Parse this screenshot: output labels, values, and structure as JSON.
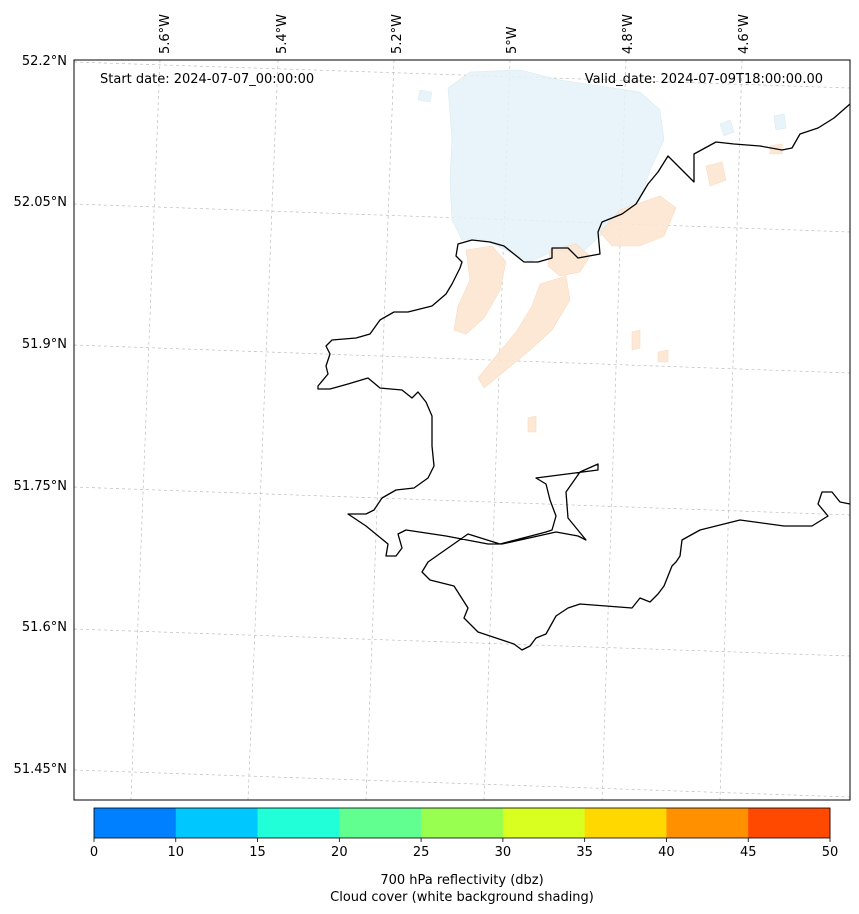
{
  "map": {
    "start_date": "Start date: 2024-07-07_00:00:00",
    "valid_date": "Valid_date: 2024-07-09T18:00:00.00",
    "lon_labels": [
      "5.6°W",
      "5.4°W",
      "5.2°W",
      "5°W",
      "4.8°W",
      "4.6°W"
    ],
    "lat_labels": [
      "52.2°N",
      "52.05°N",
      "51.9°N",
      "51.75°N",
      "51.6°N",
      "51.45°N"
    ]
  },
  "colorbar": {
    "ticks": [
      "0",
      "10",
      "15",
      "20",
      "25",
      "30",
      "35",
      "40",
      "45",
      "50"
    ],
    "colors": [
      "#0080ff",
      "#00c8ff",
      "#20ffd8",
      "#60ff90",
      "#98ff50",
      "#d8ff20",
      "#ffd800",
      "#ff9000",
      "#ff4800"
    ],
    "label_line1": "700 hPa reflectivity (dbz)",
    "label_line2": "Cloud cover (white background shading)"
  },
  "style": {
    "cloud_shade": "#e4f3f8",
    "reflectivity_shade": "#fde6d2",
    "coastline": "#000000"
  }
}
